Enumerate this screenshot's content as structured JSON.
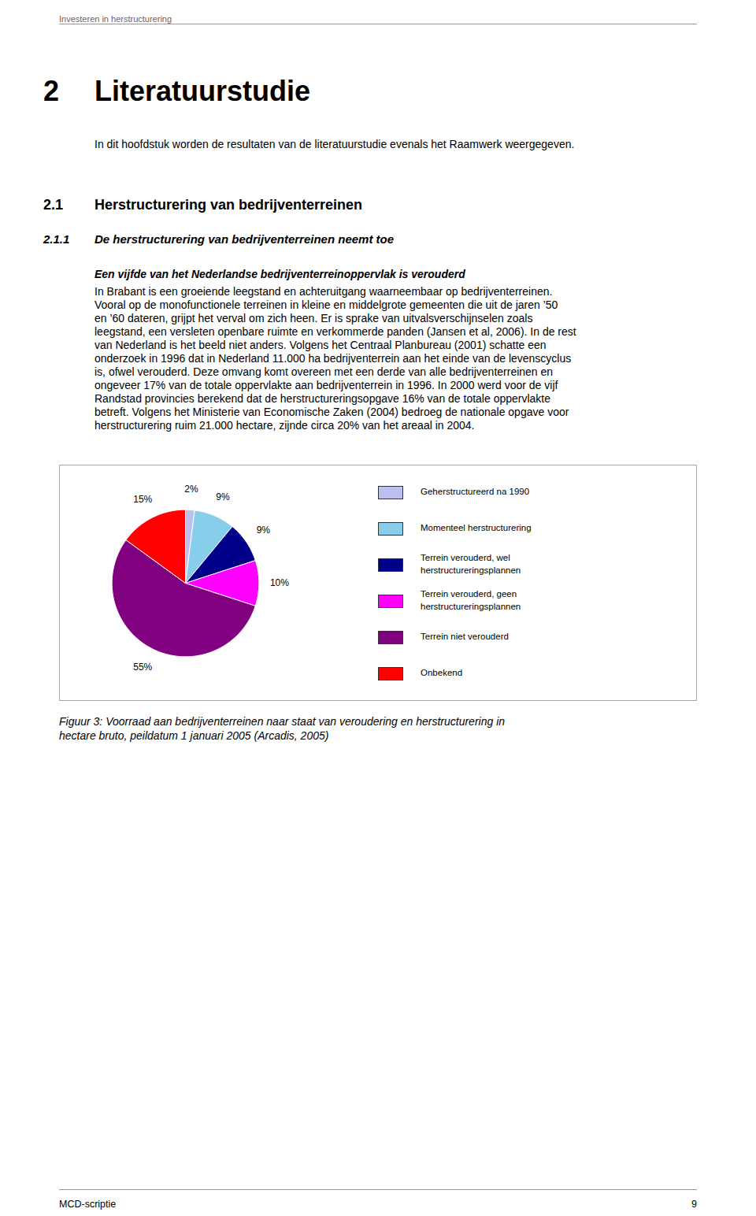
{
  "chart_data": {
    "type": "pie",
    "title": "Figuur 3: Voorraad aan bedrijventerreinen naar staat van veroudering en herstructurering in\nhectare bruto, peildatum 1 januari 2005 (Arcadis, 2005)",
    "categories": [
      "Geherstructureerd na 1990",
      "Momenteel herstructurering",
      "Terrein verouderd, wel\nherstructureringsplannen",
      "Terrein verouderd, geen\nherstructureringsplannen",
      "Terrein niet verouderd",
      "Onbekend"
    ],
    "values": [
      2,
      9,
      9,
      10,
      55,
      15
    ],
    "value_labels": [
      "2%",
      "9%",
      "9%",
      "10%",
      "55%",
      "15%"
    ],
    "colors": [
      "#BFBFEF",
      "#87CEEB",
      "#00008B",
      "#FF00FF",
      "#800080",
      "#FF0000"
    ],
    "data_labels": true,
    "legend": "right",
    "annotations": [
      [
        "Investeren in herstructurering"
      ],
      [
        "2",
        "Literatuurstudie"
      ],
      [
        "In dit hoofdstuk worden de resultaten van de literatuurstudie evenals het Raamwerk weergegeven."
      ],
      [
        "2.1",
        "Herstructurering van bedrijventerreinen"
      ],
      [
        "2.1.1",
        "De herstructurering van bedrijventerreinen neemt toe"
      ],
      [
        "Een vijfde van het Nederlandse bedrijventerreinoppervlak is verouderd"
      ],
      [
        "In Brabant is een groeiende leegstand en achteruitgang waarneembaar op bedrijventerreinen."
      ],
      [
        "Vooral op de monofunctionele terreinen in kleine en middelgrote gemeenten die uit de jaren ’50"
      ],
      [
        "en ’60 dateren, grijpt het verval om zich heen. Er is sprake van uitvalsverschijnselen zoals"
      ],
      [
        "leegstand, een versleten openbare ruimte en verkommerde panden (Jansen et al, 2006). In de rest"
      ],
      [
        "van Nederland is het beeld niet anders. Volgens het Centraal Planbureau (2001) schatte een"
      ],
      [
        "onderzoek in 1996 dat in Nederland 11.000 ha bedrijventerrein aan het einde van de levenscyclus"
      ],
      [
        "is, ofwel verouderd. Deze omvang komt overeen met een derde van alle bedrijventerreinen en"
      ],
      [
        "ongeveer 17% van de totale oppervlakte aan bedrijventerrein in 1996. In 2000 werd voor de vijf"
      ],
      [
        "Randstad provincies berekend dat de herstructureringsopgave 16% van de totale oppervlakte"
      ],
      [
        "betreft. Volgens het Ministerie van Economische Zaken (2004) bedroeg de nationale opgave voor"
      ],
      [
        "herstructurering ruim 21.000 hectare, zijnde circa 20% van het areaal in 2004."
      ],
      [
        "MCD-scriptie",
        "9"
      ]
    ]
  }
}
